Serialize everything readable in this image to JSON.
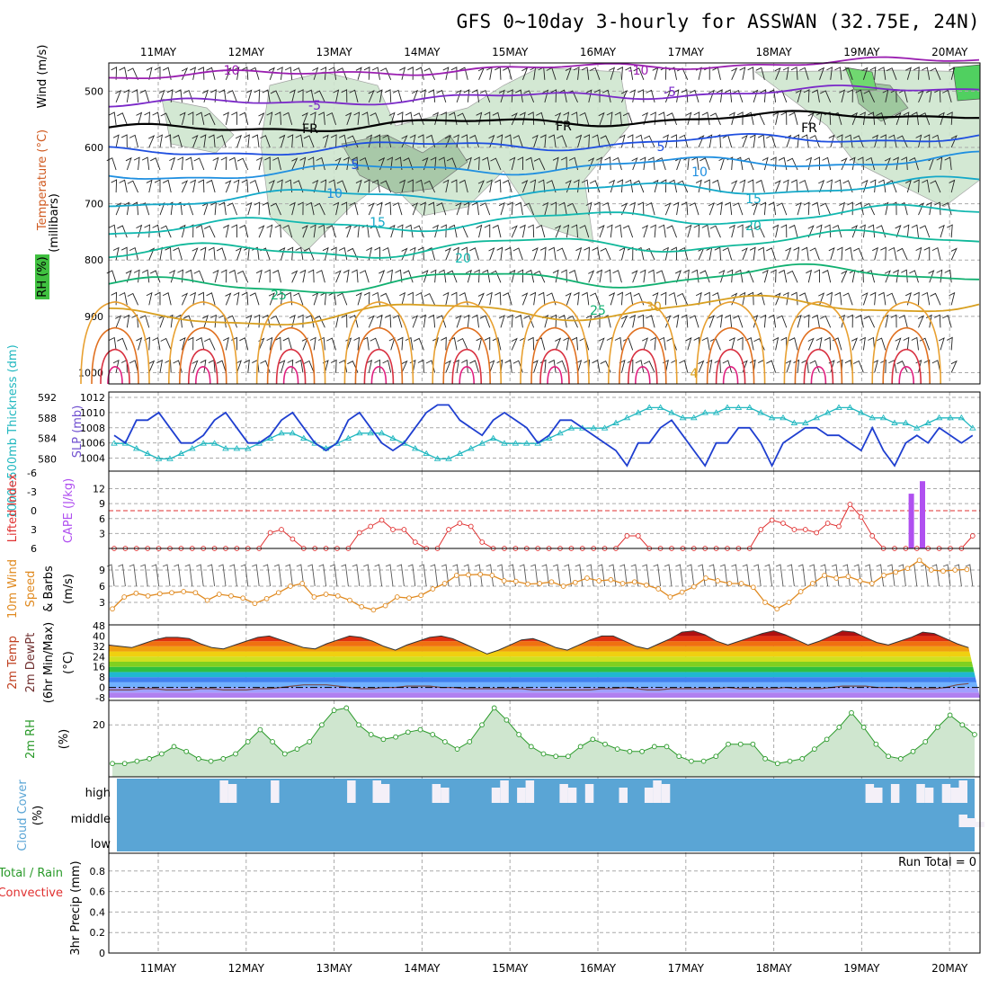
{
  "title": "GFS 0~10day 3-hourly for ASSWAN (32.75E, 24N)",
  "chart_data": {
    "type": "meteogram",
    "dates": [
      "11MAY",
      "12MAY",
      "13MAY",
      "14MAY",
      "15MAY",
      "16MAY",
      "17MAY",
      "18MAY",
      "19MAY",
      "20MAY"
    ],
    "colors": {
      "slp": "#1f3fd0",
      "thickness": "#22b8c0",
      "lifted": "#e03030",
      "cape": "#b050f0",
      "wind10m": "#e08a20",
      "rh2m": "#2a9a2a",
      "cloud": "#5aa5d5",
      "rh_shade": "#cfe6cf"
    },
    "upper_air": {
      "ylabel": "(millibars)",
      "side_labels": {
        "wind": "Wind (m/s)",
        "temperature": "Temperature (°C)",
        "rh": "RH (%)"
      },
      "pressure_ticks": [
        "500",
        "600",
        "700",
        "800",
        "900",
        "1000"
      ],
      "isotherms": [
        {
          "label": "-10",
          "level": 475,
          "color": "#9a1fb0"
        },
        {
          "label": "-5",
          "level": 525,
          "color": "#7a28c8"
        },
        {
          "label": "FR",
          "level": 570,
          "color": "#000000"
        },
        {
          "label": "-5",
          "level": 610,
          "color": "#1f4fe0"
        },
        {
          "label": "10",
          "level": 650,
          "color": "#1f8fe0"
        },
        {
          "label": "15",
          "level": 695,
          "color": "#13a8c8"
        },
        {
          "label": "20",
          "level": 745,
          "color": "#12b8b0"
        },
        {
          "label": "20",
          "level": 790,
          "color": "#10b89a"
        },
        {
          "label": "25",
          "level": 850,
          "color": "#10b070"
        },
        {
          "label": "30",
          "level": 905,
          "color": "#d8a020"
        }
      ],
      "contour_labels": [
        "-10",
        "-5",
        "FR",
        "5",
        "10",
        "15",
        "20",
        "25",
        "30",
        "4"
      ]
    },
    "slp_thickness": {
      "ylabel_left": "1000~500mb Thickness (dm)",
      "ylabel_right": "SLP (mb)",
      "thickness_ticks": [
        "592",
        "588",
        "584",
        "580"
      ],
      "slp_ticks": [
        "1012",
        "1010",
        "1008",
        "1006",
        "1004"
      ],
      "slp": [
        1007,
        1006,
        1009,
        1009,
        1010,
        1008,
        1006,
        1006,
        1007,
        1009,
        1010,
        1008,
        1006,
        1006,
        1007,
        1009,
        1010,
        1008,
        1006,
        1005,
        1006,
        1009,
        1010,
        1008,
        1006,
        1005,
        1006,
        1008,
        1010,
        1011,
        1011,
        1009,
        1008,
        1007,
        1009,
        1010,
        1009,
        1008,
        1006,
        1007,
        1009,
        1009,
        1008,
        1007,
        1006,
        1005,
        1003,
        1006,
        1006,
        1008,
        1009,
        1007,
        1005,
        1003,
        1006,
        1006,
        1008,
        1008,
        1006,
        1003,
        1006,
        1007,
        1008,
        1008,
        1007,
        1007,
        1006,
        1005,
        1008,
        1005,
        1003,
        1006,
        1007,
        1006,
        1008,
        1007,
        1006,
        1007
      ],
      "thickness": [
        583,
        583,
        582,
        581,
        580,
        580,
        581,
        582,
        583,
        583,
        582,
        582,
        582,
        583,
        584,
        585,
        585,
        584,
        583,
        582,
        583,
        584,
        585,
        585,
        585,
        584,
        583,
        582,
        581,
        580,
        580,
        581,
        582,
        583,
        584,
        583,
        583,
        583,
        583,
        584,
        585,
        586,
        586,
        586,
        586,
        587,
        588,
        589,
        590,
        590,
        589,
        588,
        588,
        589,
        589,
        590,
        590,
        590,
        589,
        588,
        588,
        587,
        587,
        588,
        589,
        590,
        590,
        589,
        588,
        588,
        587,
        587,
        586,
        587,
        588,
        588,
        588,
        586
      ]
    },
    "stability": {
      "ylabel_left": "Lifted Index",
      "ylabel_right": "CAPE (J/kg)",
      "lifted_ticks": [
        "-6",
        "-3",
        "0",
        "3",
        "6"
      ],
      "cape_ticks": [
        "12",
        "9",
        "6",
        "3"
      ],
      "lifted_index": [
        7,
        7,
        7,
        7,
        7,
        7,
        7,
        7,
        7,
        7,
        7,
        7,
        7,
        7,
        3.5,
        3,
        4.5,
        6,
        7,
        7,
        7,
        7,
        3.5,
        2.5,
        1.5,
        3,
        3,
        5,
        7,
        7,
        3,
        2,
        2.5,
        5,
        7,
        7,
        7,
        7,
        7,
        7,
        7,
        7,
        7,
        7,
        7,
        7,
        4,
        4,
        7,
        7,
        7,
        7,
        7,
        7,
        7,
        7,
        7,
        7,
        3,
        1.5,
        2,
        3,
        3,
        3.5,
        2,
        2.5,
        -1,
        1,
        4,
        6,
        7,
        7,
        7,
        7,
        7,
        7,
        7,
        4
      ],
      "cape_bars": [
        {
          "x": 71.5,
          "value": 11
        },
        {
          "x": 72.5,
          "value": 13.5
        }
      ]
    },
    "wind10m": {
      "ylabel": "10m Wind Speed & Barbs (m/s)",
      "ticks": [
        "9",
        "6",
        "3"
      ],
      "speed": [
        1.8,
        4.0,
        4.7,
        4.2,
        4.6,
        4.8,
        5.0,
        4.8,
        3.4,
        4.5,
        4.2,
        3.8,
        2.8,
        3.7,
        4.8,
        6.0,
        6.5,
        4.0,
        4.5,
        4.2,
        3.4,
        2.2,
        1.6,
        2.4,
        4.0,
        3.8,
        4.3,
        5.5,
        6.5,
        8.0,
        8.1,
        8.2,
        8.0,
        7.0,
        6.9,
        6.4,
        6.5,
        6.8,
        6.0,
        6.7,
        7.5,
        7.0,
        7.2,
        6.5,
        6.8,
        6.2,
        5.5,
        4.0,
        4.9,
        5.9,
        7.5,
        7.0,
        6.5,
        6.5,
        5.8,
        3.0,
        1.8,
        3.0,
        5.0,
        6.5,
        8.0,
        7.5,
        7.8,
        7.0,
        6.5,
        8.0,
        8.6,
        9.3,
        10.8,
        9.0,
        8.8,
        9.0,
        9.1
      ]
    },
    "temperature2m": {
      "ylabel": "2m Temp 2m DewPt (6hr Min/Max) (°C)",
      "ticks": [
        "48",
        "40",
        "32",
        "24",
        "16",
        "8",
        "0",
        "-8"
      ],
      "temp": [
        33,
        32,
        31,
        34,
        37,
        39,
        39,
        38,
        34,
        31,
        30,
        33,
        36,
        39,
        40,
        37,
        34,
        31,
        30,
        34,
        37,
        40,
        39,
        36,
        32,
        29,
        33,
        36,
        39,
        40,
        38,
        34,
        30,
        26,
        29,
        33,
        37,
        38,
        35,
        31,
        29,
        33,
        37,
        40,
        40,
        36,
        32,
        30,
        34,
        38,
        43,
        44,
        41,
        36,
        33,
        36,
        39,
        42,
        44,
        41,
        37,
        33,
        36,
        40,
        44,
        43,
        39,
        35,
        33,
        36,
        39,
        43,
        42,
        38,
        34,
        31
      ],
      "dewpoint": [
        -2,
        -2,
        -2,
        -1,
        -1,
        -2,
        -2,
        -2,
        -1,
        -1,
        -2,
        -2,
        -2,
        -1,
        -1,
        0,
        1,
        2,
        2,
        2,
        1,
        0,
        -1,
        -1,
        0,
        0,
        1,
        1,
        1,
        0,
        0,
        -1,
        -1,
        -1,
        -1,
        -1,
        -1,
        -2,
        -2,
        -2,
        -2,
        -2,
        -2,
        -1,
        -1,
        0,
        -1,
        -2,
        -2,
        -1,
        -1,
        -1,
        -1,
        -1,
        0,
        -1,
        -1,
        -1,
        -1,
        0,
        -1,
        -1,
        -1,
        0,
        1,
        1,
        1,
        0,
        0,
        0,
        -1,
        -1,
        -1,
        0,
        2,
        3
      ]
    },
    "rh2m": {
      "ylabel": "2m RH (%)",
      "ticks": [
        "20"
      ],
      "values": [
        4,
        4,
        5,
        6,
        8,
        11,
        9,
        6,
        5,
        6,
        8,
        13,
        18,
        13,
        8,
        10,
        13,
        20,
        26,
        27,
        20,
        16,
        14,
        15,
        17,
        18,
        16,
        13,
        10,
        13,
        20,
        27,
        22,
        16,
        11,
        8,
        7,
        7,
        11,
        14,
        12,
        10,
        9,
        9,
        11,
        11,
        7,
        5,
        5,
        7,
        12,
        12,
        12,
        6,
        4,
        5,
        6,
        10,
        14,
        19,
        25,
        19,
        12,
        7,
        6,
        9,
        13,
        19,
        24,
        20,
        16
      ]
    },
    "cloud_cover": {
      "ylabel": "Cloud Cover (%)",
      "levels": [
        "high",
        "middle",
        "low"
      ],
      "blocks": [
        [
          12,
          "high"
        ],
        [
          13,
          "high"
        ],
        [
          18,
          "high"
        ],
        [
          27,
          "high"
        ],
        [
          30,
          "high"
        ],
        [
          31,
          "high"
        ],
        [
          37,
          "high"
        ],
        [
          38,
          "high"
        ],
        [
          44,
          "high"
        ],
        [
          45,
          "high"
        ],
        [
          47,
          "high"
        ],
        [
          48,
          "high"
        ],
        [
          52,
          "high"
        ],
        [
          53,
          "high"
        ],
        [
          55,
          "high"
        ],
        [
          59,
          "high"
        ],
        [
          62,
          "high"
        ],
        [
          63,
          "high"
        ],
        [
          64,
          "high"
        ],
        [
          88,
          "high"
        ],
        [
          89,
          "high"
        ],
        [
          91,
          "high"
        ],
        [
          94,
          "high"
        ],
        [
          95,
          "high"
        ],
        [
          97,
          "high"
        ],
        [
          98,
          "high"
        ],
        [
          99,
          "high"
        ],
        [
          99,
          "middle"
        ],
        [
          100,
          "middle"
        ],
        [
          101,
          "middle"
        ]
      ]
    },
    "precipitation": {
      "ylabel": "3hr Precip (mm)",
      "side_labels": [
        "Total / Rain",
        "Convective"
      ],
      "ticks": [
        "0.8",
        "0.6",
        "0.4",
        "0.2",
        "0"
      ],
      "run_total_label": "Run Total = 0",
      "values": []
    }
  }
}
